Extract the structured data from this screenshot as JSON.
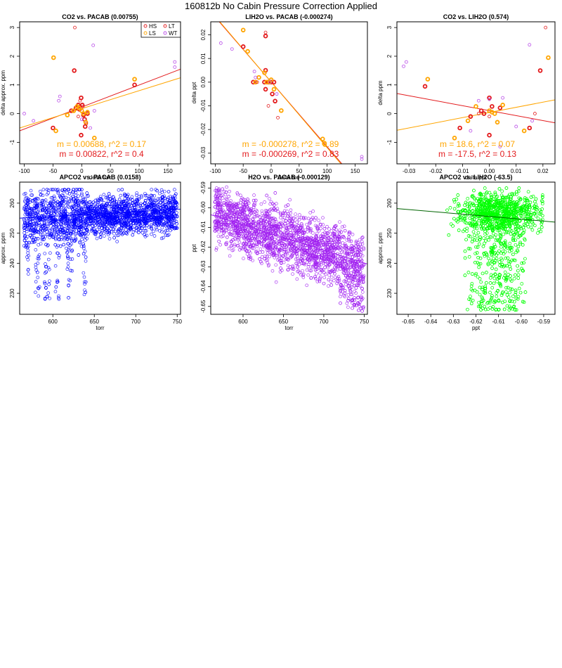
{
  "page": {
    "title": "160812b   No Cabin Pressure Correction Applied"
  },
  "colors": {
    "HS": "#e31a1c",
    "LS": "#ffa500",
    "LT": "#e31a1c",
    "WT": "#b84ae8"
  },
  "chart_data": [
    {
      "id": "p1",
      "type": "scatter",
      "title": "CO2 vs. PACAB (0.00755)",
      "xlabel": "delta torr",
      "ylabel": "delta approx. ppm",
      "xlim": [
        -108,
        172
      ],
      "ylim": [
        -1.75,
        3.2
      ],
      "xticks": [
        -100,
        -50,
        0,
        50,
        100,
        150
      ],
      "yticks": [
        -1,
        0,
        1,
        2,
        3
      ],
      "legend": {
        "position": "top-right",
        "entries": [
          {
            "name": "HS",
            "color": "#e31a1c"
          },
          {
            "name": "LT",
            "color": "#e31a1c"
          },
          {
            "name": "LS",
            "color": "#ffa500"
          },
          {
            "name": "WT",
            "color": "#b84ae8"
          }
        ]
      },
      "series": [
        {
          "name": "HS",
          "color": "#e31a1c",
          "bold": true,
          "points": [
            [
              -13,
              1.5
            ],
            [
              -1,
              0.55
            ],
            [
              -50,
              -0.5
            ],
            [
              -18,
              0.1
            ],
            [
              -10,
              0.2
            ],
            [
              -6,
              0.3
            ],
            [
              -4,
              0.15
            ],
            [
              1,
              0.3
            ],
            [
              3,
              -0.05
            ],
            [
              5,
              -0.2
            ],
            [
              6,
              -0.45
            ],
            [
              10,
              0.0
            ],
            [
              -1,
              -0.75
            ],
            [
              92,
              1.0
            ]
          ]
        },
        {
          "name": "LS",
          "color": "#ffa500",
          "bold": true,
          "points": [
            [
              -49,
              1.95
            ],
            [
              -45,
              -0.6
            ],
            [
              -25,
              -0.05
            ],
            [
              -14,
              0.1
            ],
            [
              -8,
              0.25
            ],
            [
              -5,
              0.2
            ],
            [
              0,
              0.1
            ],
            [
              3,
              0.0
            ],
            [
              7,
              -0.3
            ],
            [
              10,
              0.05
            ],
            [
              22,
              -0.85
            ],
            [
              92,
              1.2
            ]
          ]
        },
        {
          "name": "LT",
          "color": "#e31a1c",
          "bold": false,
          "points": [
            [
              -12,
              3.0
            ],
            [
              -3,
              0.45
            ],
            [
              8,
              -0.35
            ],
            [
              2,
              0.25
            ],
            [
              -6,
              -0.1
            ]
          ]
        },
        {
          "name": "WT",
          "color": "#b84ae8",
          "bold": false,
          "points": [
            [
              -100,
              0.0
            ],
            [
              -84,
              -0.25
            ],
            [
              -40,
              0.45
            ],
            [
              -38,
              0.6
            ],
            [
              20,
              2.38
            ],
            [
              15,
              -0.5
            ],
            [
              22,
              0.1
            ],
            [
              162,
              1.62
            ],
            [
              162,
              1.8
            ],
            [
              0,
              -0.2
            ]
          ]
        }
      ],
      "fits": [
        {
          "color": "#e31a1c",
          "x": [
            -108,
            172
          ],
          "y": [
            -0.6,
            1.55
          ]
        },
        {
          "color": "#ffa500",
          "x": [
            -108,
            172
          ],
          "y": [
            -0.5,
            1.25
          ]
        }
      ],
      "stats": [
        {
          "text": "m = 0.00688, r^2 = 0.17",
          "color": "#ffa500"
        },
        {
          "text": "m = 0.00822, r^2 = 0.4",
          "color": "#e31a1c"
        }
      ]
    },
    {
      "id": "p2",
      "type": "scatter",
      "title": "LIH2O vs. PACAB (-0.000274)",
      "xlabel": "delta torr",
      "ylabel": "delta ppt",
      "xlim": [
        -108,
        172
      ],
      "ylim": [
        -0.0345,
        0.0255
      ],
      "xticks": [
        -100,
        -50,
        0,
        50,
        100,
        150
      ],
      "yticks": [
        -0.03,
        -0.02,
        -0.01,
        0.0,
        0.01,
        0.02
      ],
      "ytick_labels": [
        "-0.03",
        "-0.02",
        "-0.01",
        "0.00",
        "0.01",
        "0.02"
      ],
      "series": [
        {
          "name": "HS",
          "color": "#e31a1c",
          "bold": true,
          "points": [
            [
              -50,
              0.015
            ],
            [
              -32,
              0.0
            ],
            [
              -12,
              0.0
            ],
            [
              -10,
              0.005
            ],
            [
              -5,
              0.0
            ],
            [
              0,
              0.0
            ],
            [
              2,
              -0.005
            ],
            [
              5,
              0.0
            ],
            [
              7,
              -0.008
            ],
            [
              -10,
              -0.003
            ],
            [
              -10,
              0.0195
            ]
          ]
        },
        {
          "name": "LS",
          "color": "#ffa500",
          "bold": true,
          "points": [
            [
              -50,
              0.022
            ],
            [
              -42,
              0.013
            ],
            [
              -28,
              0.0
            ],
            [
              -22,
              0.002
            ],
            [
              -12,
              0.004
            ],
            [
              -8,
              0.0
            ],
            [
              -3,
              0.0
            ],
            [
              0,
              0.001
            ],
            [
              5,
              -0.003
            ],
            [
              18,
              -0.012
            ],
            [
              92,
              -0.024
            ],
            [
              95,
              -0.026
            ]
          ]
        },
        {
          "name": "LT",
          "color": "#e31a1c",
          "bold": false,
          "points": [
            [
              -10,
              0.021
            ],
            [
              -25,
              0.0
            ],
            [
              -5,
              -0.01
            ],
            [
              12,
              -0.015
            ]
          ]
        },
        {
          "name": "WT",
          "color": "#b84ae8",
          "bold": false,
          "points": [
            [
              -90,
              0.0165
            ],
            [
              -70,
              0.014
            ],
            [
              -30,
              0.0045
            ],
            [
              -28,
              0.002
            ],
            [
              10,
              -0.005
            ],
            [
              162,
              -0.0315
            ],
            [
              162,
              -0.0325
            ],
            [
              -2,
              0.0
            ]
          ]
        }
      ],
      "fits": [
        {
          "color": "#e31a1c",
          "x": [
            -100,
            130
          ],
          "y": [
            0.0275,
            -0.0355
          ]
        },
        {
          "color": "#ffa500",
          "x": [
            -100,
            130
          ],
          "y": [
            0.0278,
            -0.036
          ]
        }
      ],
      "stats": [
        {
          "text": "m = -0.000278, r^2 = 0.89",
          "color": "#ffa500"
        },
        {
          "text": "m = -0.000269, r^2 = 0.83",
          "color": "#e31a1c"
        }
      ]
    },
    {
      "id": "p3",
      "type": "scatter",
      "title": "CO2 vs. LIH2O (0.574)",
      "xlabel": "delta ppt",
      "ylabel": "delta ppm",
      "xlim": [
        -0.0345,
        0.0245
      ],
      "ylim": [
        -1.75,
        3.2
      ],
      "xticks": [
        -0.03,
        -0.02,
        -0.01,
        0.0,
        0.01,
        0.02
      ],
      "yticks": [
        -1,
        0,
        1,
        2,
        3
      ],
      "xtick_labels": [
        "-0.03",
        "-0.02",
        "-0.01",
        "0.00",
        "0.01",
        "0.02"
      ],
      "series": [
        {
          "name": "HS",
          "color": "#e31a1c",
          "bold": true,
          "points": [
            [
              -0.024,
              0.95
            ],
            [
              0.019,
              1.5
            ],
            [
              0.0,
              0.55
            ],
            [
              0.004,
              0.2
            ],
            [
              0.001,
              0.25
            ],
            [
              -0.002,
              0.0
            ],
            [
              0.0,
              -0.75
            ],
            [
              0.015,
              -0.5
            ],
            [
              -0.003,
              0.1
            ],
            [
              -0.007,
              -0.1
            ],
            [
              -0.011,
              -0.5
            ]
          ]
        },
        {
          "name": "LS",
          "color": "#ffa500",
          "bold": true,
          "points": [
            [
              0.022,
              1.95
            ],
            [
              -0.023,
              1.2
            ],
            [
              -0.013,
              -0.85
            ],
            [
              0.0,
              0.1
            ],
            [
              0.002,
              0.0
            ],
            [
              0.005,
              0.3
            ],
            [
              -0.005,
              0.25
            ],
            [
              0.003,
              -0.3
            ],
            [
              0.013,
              -0.6
            ],
            [
              -0.008,
              -0.25
            ],
            [
              0.001,
              0.05
            ]
          ]
        },
        {
          "name": "LT",
          "color": "#e31a1c",
          "bold": false,
          "points": [
            [
              0.021,
              3.0
            ],
            [
              -0.004,
              0.0
            ],
            [
              0.0,
              -0.1
            ],
            [
              0.017,
              0.0
            ]
          ]
        },
        {
          "name": "WT",
          "color": "#b84ae8",
          "bold": false,
          "points": [
            [
              -0.032,
              1.65
            ],
            [
              -0.031,
              1.8
            ],
            [
              0.015,
              2.4
            ],
            [
              0.005,
              0.55
            ],
            [
              0.0,
              0.5
            ],
            [
              0.016,
              -0.25
            ],
            [
              -0.004,
              0.45
            ],
            [
              0.004,
              -1.15
            ],
            [
              -0.007,
              -0.6
            ],
            [
              0.01,
              -0.45
            ]
          ]
        }
      ],
      "fits": [
        {
          "color": "#e31a1c",
          "x": [
            -0.0345,
            0.0245
          ],
          "y": [
            0.7,
            -0.32
          ]
        },
        {
          "color": "#ffa500",
          "x": [
            -0.0345,
            0.0245
          ],
          "y": [
            -0.58,
            0.48
          ]
        }
      ],
      "stats": [
        {
          "text": "m = 18.6, r^2 = 0.07",
          "color": "#ffa500"
        },
        {
          "text": "m = -17.5, r^2 = 0.13",
          "color": "#e31a1c"
        }
      ]
    },
    {
      "id": "p4",
      "type": "scatter",
      "title": "APCO2 vs. PACAB (0.0158)",
      "xlabel": "torr",
      "ylabel": "approx. ppm",
      "xlim": [
        560,
        754
      ],
      "ylim": [
        223,
        267
      ],
      "xticks": [
        600,
        650,
        700,
        750
      ],
      "yticks": [
        230,
        240,
        250,
        260
      ],
      "color": "#0000ff",
      "fit": {
        "color": "#0000ff",
        "x": [
          560,
          754
        ],
        "y": [
          255.0,
          258.0
        ]
      }
    },
    {
      "id": "p5",
      "type": "scatter",
      "title": "H2O vs. PACAB (-0.000129)",
      "xlabel": "torr",
      "ylabel": "ppt",
      "xlim": [
        560,
        754
      ],
      "ylim": [
        -0.654,
        -0.587
      ],
      "xticks": [
        600,
        650,
        700,
        750
      ],
      "yticks": [
        -0.65,
        -0.64,
        -0.63,
        -0.62,
        -0.61,
        -0.6,
        -0.59
      ],
      "ytick_labels": [
        "-0.65",
        "-0.64",
        "-0.63",
        "-0.62",
        "-0.61",
        "-0.60",
        "-0.59"
      ],
      "color": "#a020f0",
      "fit": {
        "color": "#a020f0",
        "x": [
          560,
          754
        ],
        "y": [
          -0.6035,
          -0.6285
        ]
      }
    },
    {
      "id": "p6",
      "type": "scatter",
      "title": "APCO2 vs. LIH2O (-63.5)",
      "xlabel": "ppt",
      "ylabel": "approx. ppm",
      "xlim": [
        -0.655,
        -0.585
      ],
      "ylim": [
        223,
        267
      ],
      "xticks": [
        -0.65,
        -0.64,
        -0.63,
        -0.62,
        -0.61,
        -0.6,
        -0.59
      ],
      "yticks": [
        230,
        240,
        250,
        260
      ],
      "xtick_labels": [
        "-0.65",
        "-0.64",
        "-0.63",
        "-0.62",
        "-0.61",
        "-0.60",
        "-0.59"
      ],
      "color": "#00ff00",
      "fit": {
        "color": "#006400",
        "x": [
          -0.655,
          -0.585
        ],
        "y": [
          258.2,
          253.7
        ]
      }
    }
  ]
}
